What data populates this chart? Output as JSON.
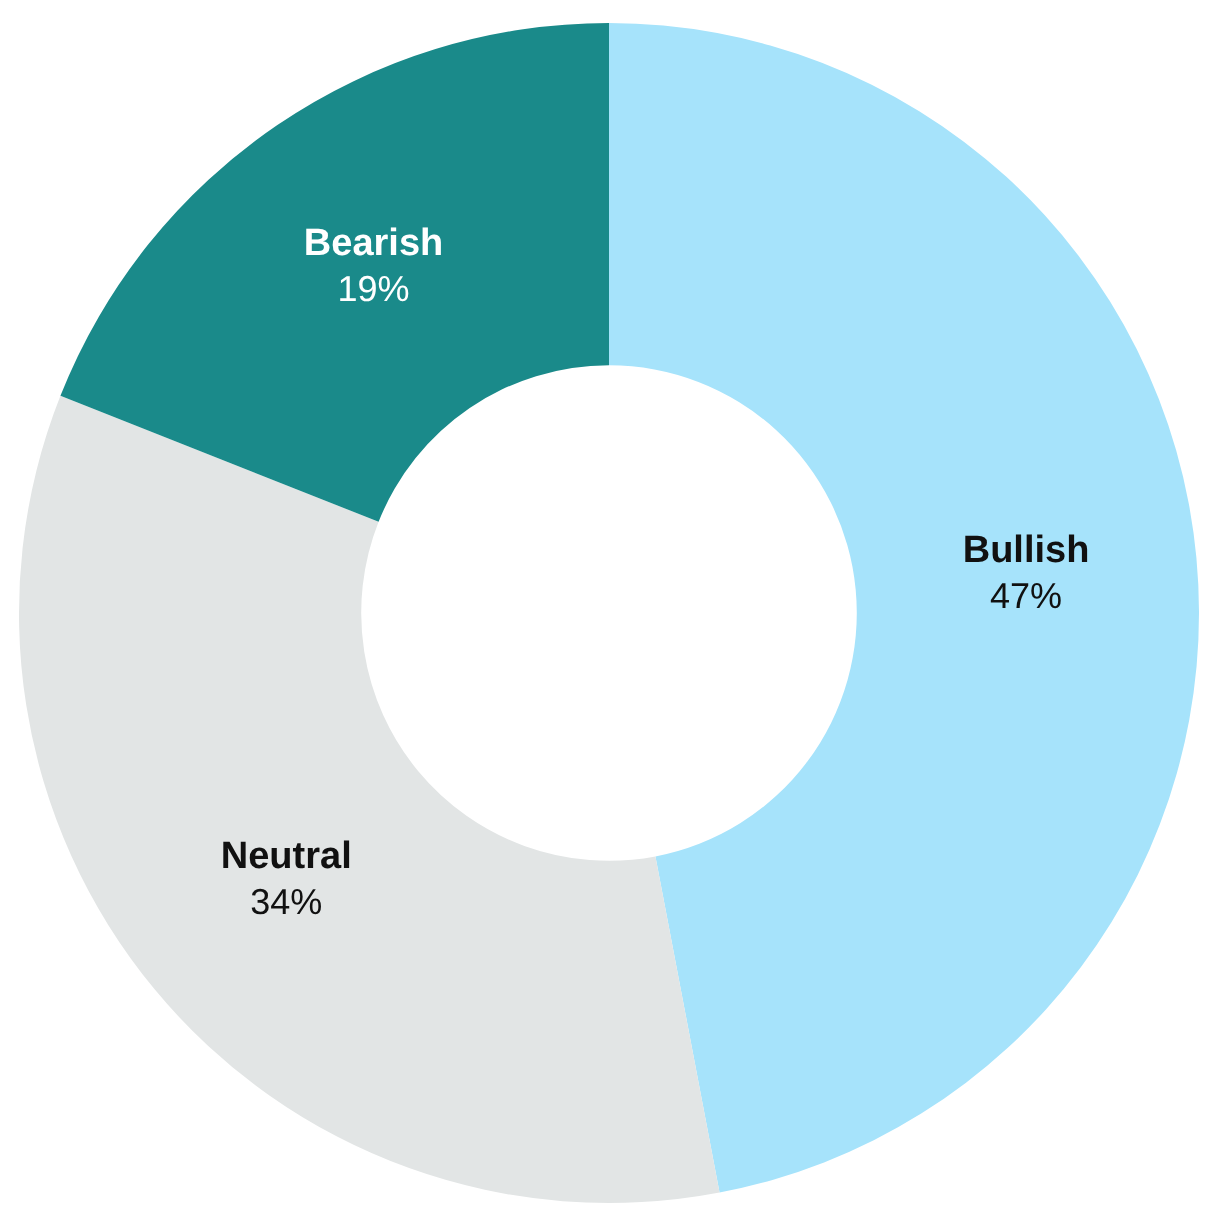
{
  "chart_data": {
    "type": "donut",
    "categories": [
      "Bullish",
      "Neutral",
      "Bearish"
    ],
    "values": [
      47,
      34,
      19
    ],
    "colors": [
      "#a6e3fb",
      "#e2e5e5",
      "#1a8a8a"
    ],
    "value_labels": [
      "47%",
      "34%",
      "19%"
    ],
    "legend": false
  }
}
